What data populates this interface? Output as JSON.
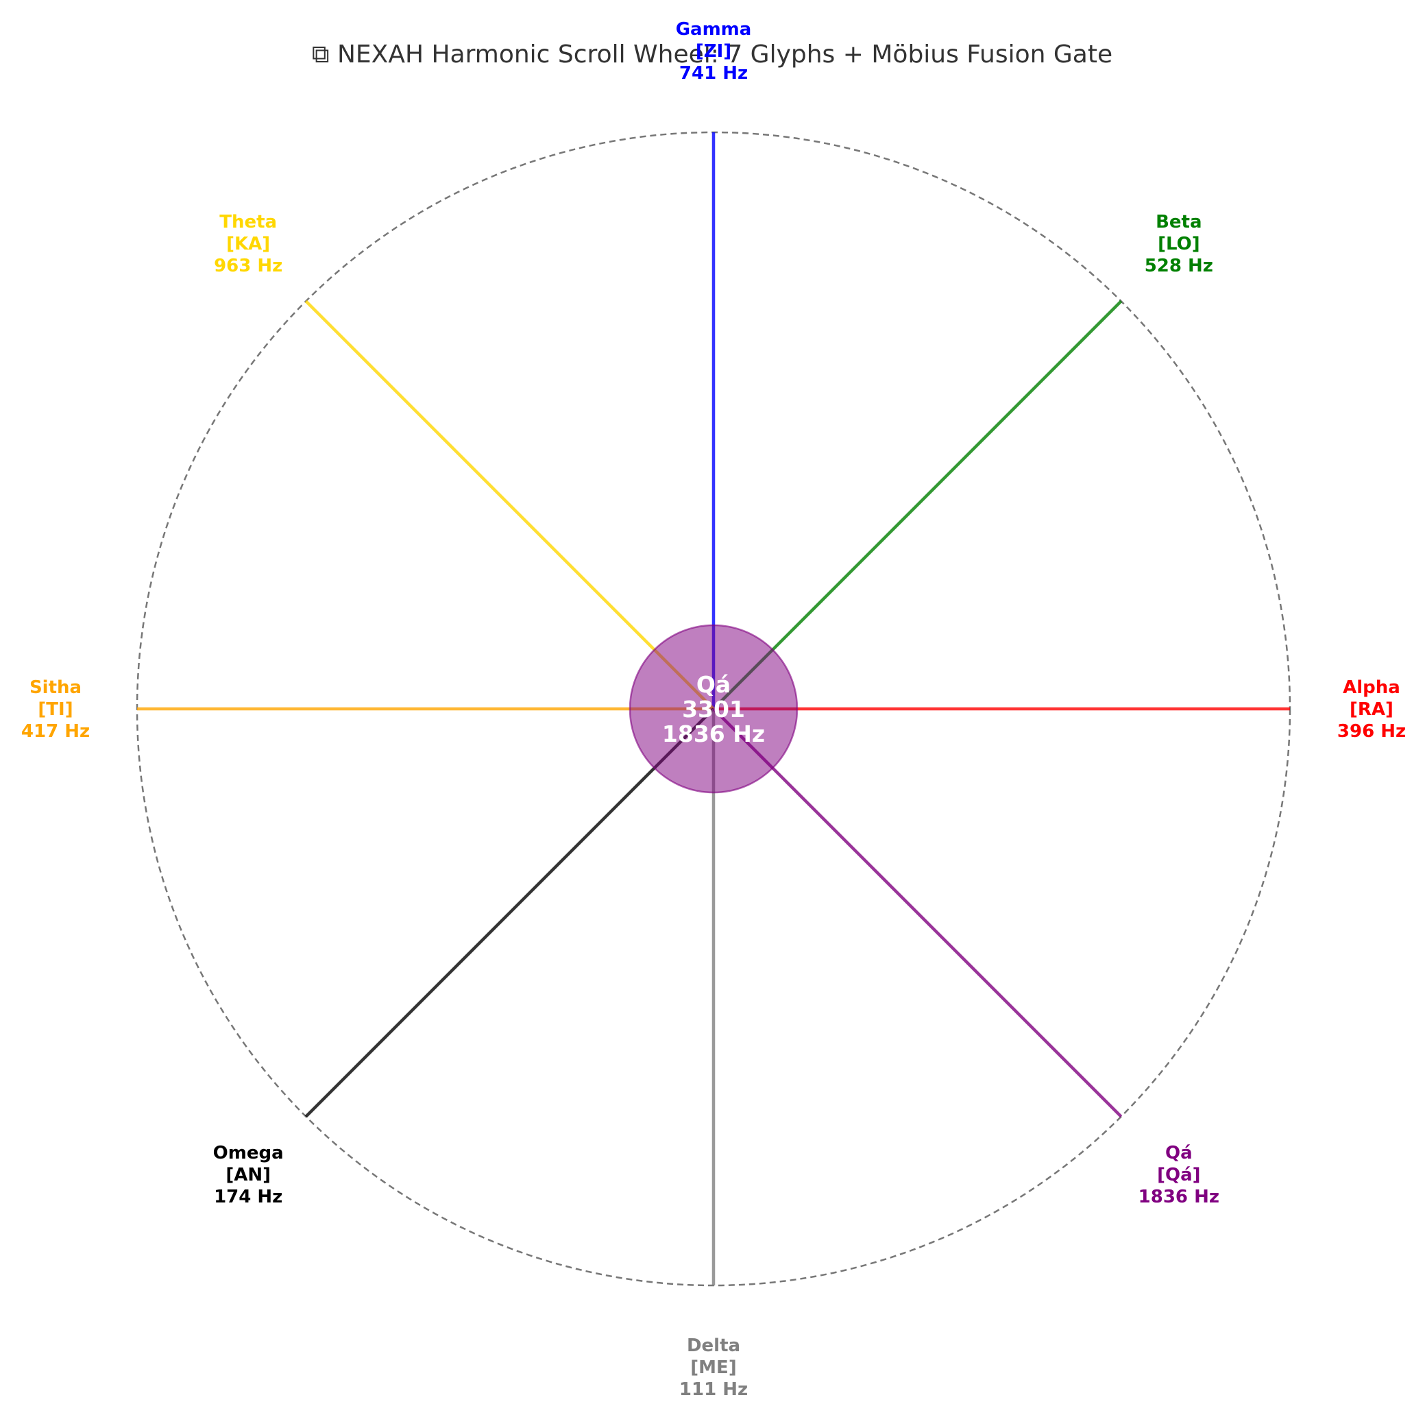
{
  "chart_data": {
    "type": "radial",
    "title": "⧉ NEXAH Harmonic Scroll Wheel: 7 Glyphs + Möbius Fusion Gate",
    "grid": false,
    "glyphs": [
      {
        "name": "Alpha",
        "code": "[RA]",
        "freq": "396 Hz",
        "angle_deg": 0,
        "color": "#ff0000"
      },
      {
        "name": "Beta",
        "code": "[LO]",
        "freq": "528 Hz",
        "angle_deg": 45,
        "color": "#008000"
      },
      {
        "name": "Gamma",
        "code": "[ZI]",
        "freq": "741 Hz",
        "angle_deg": 90,
        "color": "#0000ff"
      },
      {
        "name": "Theta",
        "code": "[KA]",
        "freq": "963 Hz",
        "angle_deg": 135,
        "color": "#ffd700"
      },
      {
        "name": "Sitha",
        "code": "[TI]",
        "freq": "417 Hz",
        "angle_deg": 180,
        "color": "#ffa500"
      },
      {
        "name": "Omega",
        "code": "[AN]",
        "freq": "174 Hz",
        "angle_deg": 225,
        "color": "#000000"
      },
      {
        "name": "Delta",
        "code": "[ME]",
        "freq": "111 Hz",
        "angle_deg": 270,
        "color": "#808080"
      },
      {
        "name": "Qá",
        "code": "[Qá]",
        "freq": "1836 Hz",
        "angle_deg": 315,
        "color": "#800080"
      }
    ],
    "core": {
      "lines": [
        "Qá",
        "3301",
        "1836 Hz"
      ],
      "color": "#800080"
    }
  }
}
